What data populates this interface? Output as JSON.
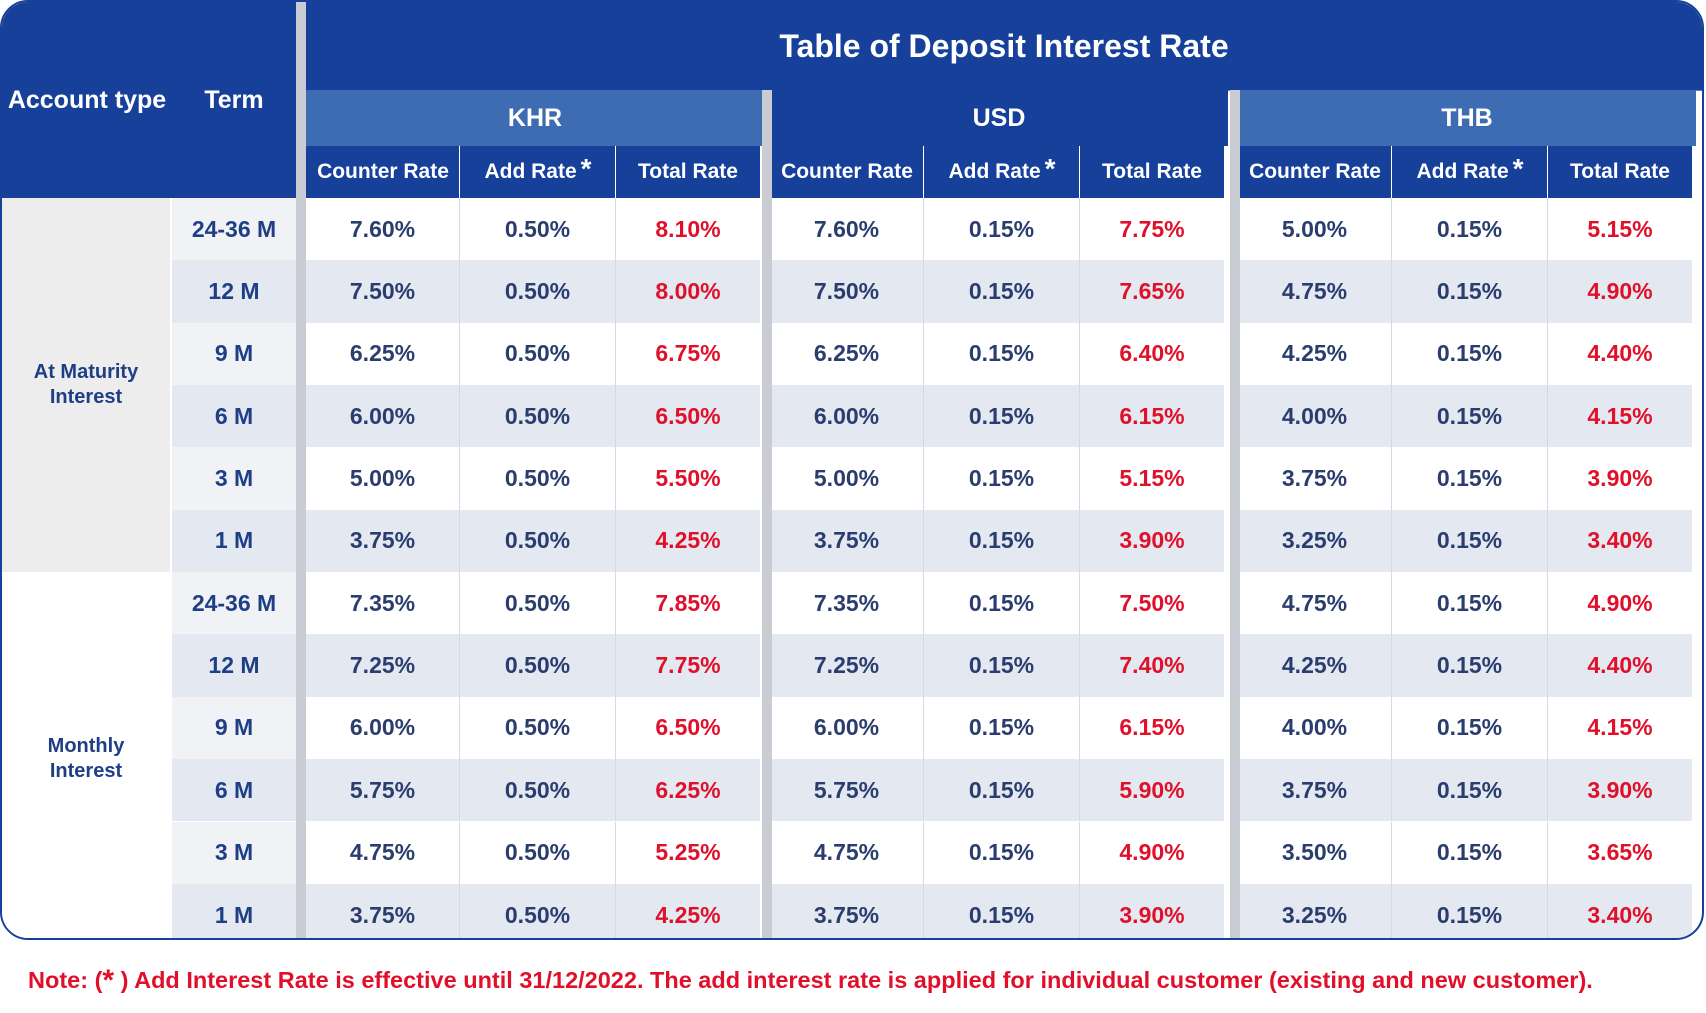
{
  "title": "Table of Deposit Interest Rate",
  "header": {
    "account_type": "Account type",
    "term": "Term",
    "currencies": [
      "KHR",
      "USD",
      "THB"
    ],
    "sub_headers": [
      "Counter Rate",
      "Add Rate",
      "Total Rate"
    ],
    "star": "*"
  },
  "groups": [
    {
      "name": "At Maturity Interest",
      "rows": [
        {
          "term": "24-36 M",
          "rates": [
            "7.60%",
            "0.50%",
            "8.10%",
            "7.60%",
            "0.15%",
            "7.75%",
            "5.00%",
            "0.15%",
            "5.15%"
          ]
        },
        {
          "term": "12 M",
          "rates": [
            "7.50%",
            "0.50%",
            "8.00%",
            "7.50%",
            "0.15%",
            "7.65%",
            "4.75%",
            "0.15%",
            "4.90%"
          ]
        },
        {
          "term": "9 M",
          "rates": [
            "6.25%",
            "0.50%",
            "6.75%",
            "6.25%",
            "0.15%",
            "6.40%",
            "4.25%",
            "0.15%",
            "4.40%"
          ]
        },
        {
          "term": "6 M",
          "rates": [
            "6.00%",
            "0.50%",
            "6.50%",
            "6.00%",
            "0.15%",
            "6.15%",
            "4.00%",
            "0.15%",
            "4.15%"
          ]
        },
        {
          "term": "3 M",
          "rates": [
            "5.00%",
            "0.50%",
            "5.50%",
            "5.00%",
            "0.15%",
            "5.15%",
            "3.75%",
            "0.15%",
            "3.90%"
          ]
        },
        {
          "term": "1 M",
          "rates": [
            "3.75%",
            "0.50%",
            "4.25%",
            "3.75%",
            "0.15%",
            "3.90%",
            "3.25%",
            "0.15%",
            "3.40%"
          ]
        }
      ]
    },
    {
      "name": "Monthly Interest",
      "rows": [
        {
          "term": "24-36 M",
          "rates": [
            "7.35%",
            "0.50%",
            "7.85%",
            "7.35%",
            "0.15%",
            "7.50%",
            "4.75%",
            "0.15%",
            "4.90%"
          ]
        },
        {
          "term": "12 M",
          "rates": [
            "7.25%",
            "0.50%",
            "7.75%",
            "7.25%",
            "0.15%",
            "7.40%",
            "4.25%",
            "0.15%",
            "4.40%"
          ]
        },
        {
          "term": "9 M",
          "rates": [
            "6.00%",
            "0.50%",
            "6.50%",
            "6.00%",
            "0.15%",
            "6.15%",
            "4.00%",
            "0.15%",
            "4.15%"
          ]
        },
        {
          "term": "6 M",
          "rates": [
            "5.75%",
            "0.50%",
            "6.25%",
            "5.75%",
            "0.15%",
            "5.90%",
            "3.75%",
            "0.15%",
            "3.90%"
          ]
        },
        {
          "term": "3 M",
          "rates": [
            "4.75%",
            "0.50%",
            "5.25%",
            "4.75%",
            "0.15%",
            "4.90%",
            "3.50%",
            "0.15%",
            "3.65%"
          ]
        },
        {
          "term": "1 M",
          "rates": [
            "3.75%",
            "0.50%",
            "4.25%",
            "3.75%",
            "0.15%",
            "3.90%",
            "3.25%",
            "0.15%",
            "3.40%"
          ]
        }
      ]
    }
  ],
  "note": {
    "prefix": "Note: (",
    "star": "*",
    "text": " ) Add Interest Rate is effective until 31/12/2022. The add interest rate is applied for individual customer (existing and new customer)."
  },
  "colors": {
    "header_dark": "#17409a",
    "header_mid": "#3d6cb3",
    "total_rate": "#e0102a",
    "row_alt": "#e3e8f1"
  }
}
